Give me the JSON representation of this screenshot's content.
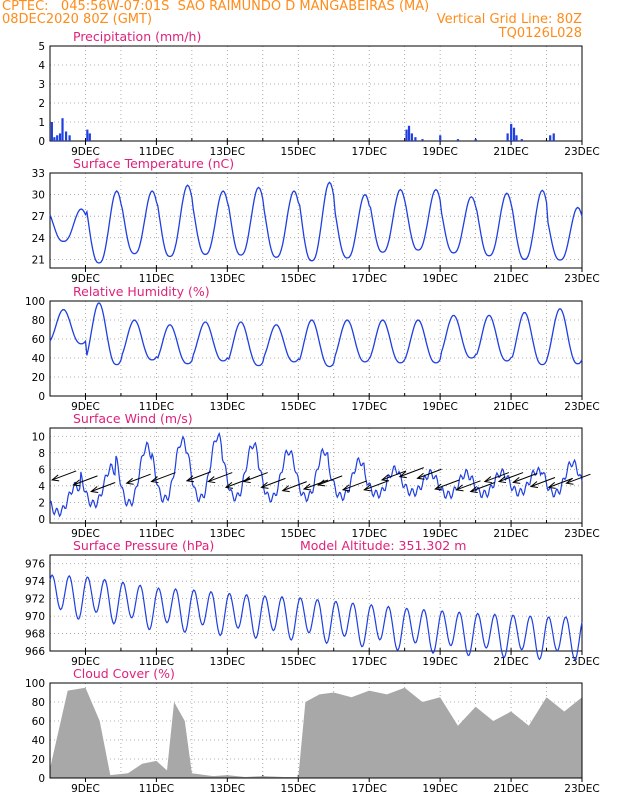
{
  "header": {
    "line1_left": "CPTEC:   045:56W-07:01S  SAO RAIMUNDO D MANGABEIRAS (MA)",
    "line2_left": "08DEC2020 80Z (GMT)",
    "line2_right": "Vertical Grid Line: 80Z",
    "line3_right": "TQ0126L028"
  },
  "colors": {
    "header": "#ff8c1a",
    "title": "#e0217a",
    "line": "#1f3fe0",
    "bar": "#1f3fe0",
    "cloud": "#a8a8a8",
    "grid": "#999999"
  },
  "x_ticks": [
    "9DEC",
    "11DEC",
    "13DEC",
    "15DEC",
    "17DEC",
    "19DEC",
    "21DEC",
    "23DEC"
  ],
  "chart_data": [
    {
      "id": "precip",
      "type": "bar",
      "title": "Precipitation  (mm/h)",
      "ylim": [
        0,
        5
      ],
      "yticks": [
        "0",
        "1",
        "2",
        "3",
        "4",
        "5"
      ],
      "x": [
        8.05,
        8.12,
        8.2,
        8.28,
        8.35,
        8.45,
        8.55,
        9.05,
        9.12,
        18.05,
        18.12,
        18.2,
        18.3,
        18.5,
        19.0,
        19.5,
        20.0,
        20.9,
        21.0,
        21.08,
        21.15,
        21.3,
        22.1,
        22.2
      ],
      "values": [
        1.0,
        0.2,
        0.3,
        0.4,
        1.2,
        0.5,
        0.3,
        0.6,
        0.4,
        0.6,
        0.8,
        0.4,
        0.2,
        0.1,
        0.3,
        0.1,
        0.1,
        0.4,
        0.9,
        0.7,
        0.3,
        0.1,
        0.3,
        0.4
      ]
    },
    {
      "id": "temp",
      "type": "line",
      "title": "Surface Temperature (nC)",
      "ylim": [
        19.8,
        33
      ],
      "yticks": [
        "21",
        "24",
        "27",
        "30",
        "33"
      ],
      "ytick_values": [
        21,
        24,
        27,
        30,
        33
      ],
      "daily_min": [
        23.5,
        20.5,
        21.8,
        21.4,
        21.7,
        21.6,
        21.3,
        20.8,
        21.2,
        22.0,
        22.3,
        21.9,
        21.5,
        21.0,
        20.9
      ],
      "daily_max": [
        28.0,
        30.5,
        30.5,
        31.3,
        30.5,
        31.0,
        30.5,
        31.7,
        30.0,
        30.7,
        30.7,
        29.7,
        30.2,
        30.6,
        28.2
      ],
      "series": [
        {
          "values": "daily cycle"
        }
      ]
    },
    {
      "id": "rh",
      "type": "line",
      "title": "Relative Humidity  (%)",
      "ylim": [
        0,
        100
      ],
      "yticks": [
        "0",
        "20",
        "40",
        "60",
        "80",
        "100"
      ],
      "ytick_values": [
        0,
        20,
        40,
        60,
        80,
        100
      ],
      "daily_min": [
        55,
        33,
        38,
        34,
        37,
        32,
        36,
        31,
        36,
        35,
        35,
        40,
        37,
        33,
        34
      ],
      "daily_max": [
        91,
        98,
        80,
        75,
        78,
        78,
        75,
        80,
        80,
        80,
        80,
        85,
        85,
        88,
        92
      ]
    },
    {
      "id": "wind",
      "type": "line",
      "title": "Surface  Wind  (m/s)",
      "ylim": [
        -0.5,
        11
      ],
      "yticks": [
        "0",
        "2",
        "4",
        "6",
        "8",
        "10"
      ],
      "ytick_values": [
        0,
        2,
        4,
        6,
        8,
        10
      ],
      "daily_min": [
        0.8,
        1.8,
        1.9,
        2.4,
        2.5,
        2.6,
        2.5,
        2.6,
        2.7,
        3.0,
        3.2,
        2.9,
        3.0,
        3.2,
        3.1
      ],
      "daily_max": [
        4.0,
        6.2,
        8.8,
        9.5,
        10.0,
        9.0,
        8.2,
        8.2,
        7.0,
        6.0,
        5.5,
        5.5,
        5.6,
        5.8,
        6.8
      ],
      "arrows_x": [
        8.4,
        9.0,
        9.5,
        10.5,
        11.2,
        12.2,
        12.8,
        13.3,
        13.8,
        14.3,
        14.9,
        15.5,
        15.9,
        16.6,
        17.2,
        17.7,
        18.2,
        18.7,
        19.2,
        19.8,
        20.2,
        20.6,
        21.0,
        21.4,
        21.9,
        22.4,
        22.9
      ],
      "arrows_y": [
        5.2,
        4.6,
        3.8,
        4.8,
        5.0,
        5.1,
        5.0,
        4.3,
        5.0,
        4.3,
        3.9,
        4.1,
        4.6,
        4.0,
        4.0,
        5.2,
        5.6,
        5.4,
        4.1,
        4.0,
        3.8,
        5.0,
        5.0,
        4.9,
        4.4,
        4.3,
        4.8
      ]
    },
    {
      "id": "pres",
      "type": "line",
      "title": "Surface Pressure (hPa)",
      "annotation": "Model Altitude: 351.302 m",
      "ylim": [
        966,
        977
      ],
      "yticks": [
        "966",
        "968",
        "970",
        "972",
        "974",
        "976"
      ],
      "ytick_values": [
        966,
        968,
        970,
        972,
        974,
        976
      ],
      "daily_mean": [
        972.5,
        972.3,
        971.7,
        971.0,
        970.8,
        970.4,
        970.1,
        969.9,
        969.5,
        969.1,
        968.7,
        968.4,
        968.1,
        967.9,
        967.7
      ],
      "amplitude": 2.2
    },
    {
      "id": "cloud",
      "type": "area",
      "title": "Cloud Cover  (%)",
      "ylim": [
        0,
        100
      ],
      "yticks": [
        "0",
        "20",
        "40",
        "60",
        "80",
        "100"
      ],
      "ytick_values": [
        0,
        20,
        40,
        60,
        80,
        100
      ],
      "x": [
        8.0,
        8.5,
        9.0,
        9.4,
        9.7,
        10.2,
        10.6,
        11.0,
        11.3,
        11.5,
        11.8,
        12.0,
        12.6,
        13.0,
        13.5,
        14.0,
        14.6,
        15.0,
        15.2,
        15.6,
        16.0,
        16.5,
        17.0,
        17.5,
        18.0,
        18.5,
        19.0,
        19.5,
        20.0,
        20.5,
        21.0,
        21.5,
        22.0,
        22.5,
        23.0
      ],
      "values": [
        10,
        92,
        95,
        60,
        3,
        5,
        15,
        18,
        8,
        80,
        60,
        5,
        2,
        3,
        1,
        2,
        1,
        1,
        80,
        88,
        90,
        85,
        92,
        88,
        95,
        80,
        85,
        55,
        75,
        60,
        70,
        55,
        85,
        70,
        85
      ]
    }
  ]
}
